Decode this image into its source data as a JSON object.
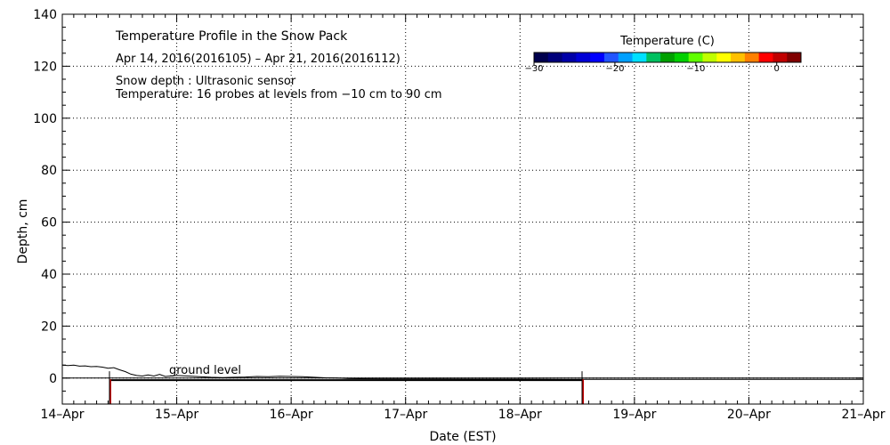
{
  "chart_data": {
    "type": "line",
    "title": "Temperature Profile in the Snow Pack",
    "subtitle": "Apr 14, 2016(2016105) – Apr 21, 2016(2016112)",
    "notes": [
      "Snow depth : Ultrasonic sensor",
      "Temperature: 16 probes at levels from −10 cm to 90 cm"
    ],
    "xlabel": "Date (EST)",
    "ylabel": "Depth, cm",
    "x_ticks": [
      "14–Apr",
      "15–Apr",
      "16–Apr",
      "17–Apr",
      "18–Apr",
      "19–Apr",
      "20–Apr",
      "21–Apr"
    ],
    "xlim": [
      0,
      7
    ],
    "ylim": [
      -10,
      140
    ],
    "y_ticks": [
      0,
      20,
      40,
      60,
      80,
      100,
      120,
      140
    ],
    "grid": true,
    "annotation": "ground level",
    "colorbar": {
      "title": "Temperature (C)",
      "tick_labels": [
        "−30",
        "−20",
        "−10",
        "0"
      ],
      "tick_values": [
        -30,
        -20,
        -10,
        0
      ],
      "range": [
        -30,
        3
      ],
      "colors": [
        "#00004d",
        "#00007a",
        "#0000a8",
        "#0000d6",
        "#0000ff",
        "#2255ff",
        "#00a0ff",
        "#00e0ff",
        "#00c060",
        "#00a000",
        "#00d000",
        "#60ff00",
        "#c0ff00",
        "#ffff00",
        "#ffc000",
        "#ff8000",
        "#ff0000",
        "#c00000",
        "#800000"
      ]
    },
    "series": [
      {
        "x": [
          0,
          0.05,
          0.1,
          0.15,
          0.2,
          0.25,
          0.3,
          0.35,
          0.4,
          0.45,
          0.5,
          0.55,
          0.6,
          0.65,
          0.7,
          0.75,
          0.8,
          0.85,
          0.9,
          1.0,
          1.1,
          1.2,
          1.3,
          1.4,
          1.5,
          1.6,
          1.7,
          1.8,
          1.9,
          2.0,
          2.1,
          2.2,
          2.3,
          2.4,
          2.5,
          2.8,
          3.2,
          3.6,
          4.0,
          4.4,
          4.7,
          5.0,
          6.0,
          7.0
        ],
        "y": [
          5,
          4.8,
          5,
          4.6,
          4.7,
          4.4,
          4.5,
          4.2,
          3.8,
          4.0,
          3.2,
          2.5,
          1.5,
          1.0,
          0.8,
          1.2,
          0.8,
          1.4,
          0.6,
          1.0,
          0.8,
          0.5,
          0.3,
          0.2,
          0.3,
          0.4,
          0.6,
          0.5,
          0.7,
          0.6,
          0.5,
          0.3,
          0.1,
          0.0,
          -0.2,
          -0.3,
          -0.3,
          -0.4,
          -0.4,
          -0.5,
          -0.5,
          -0.5,
          -0.5,
          -0.5
        ]
      }
    ],
    "sensor_span": {
      "x": [
        0.42,
        4.55
      ],
      "y": -0.8
    }
  }
}
